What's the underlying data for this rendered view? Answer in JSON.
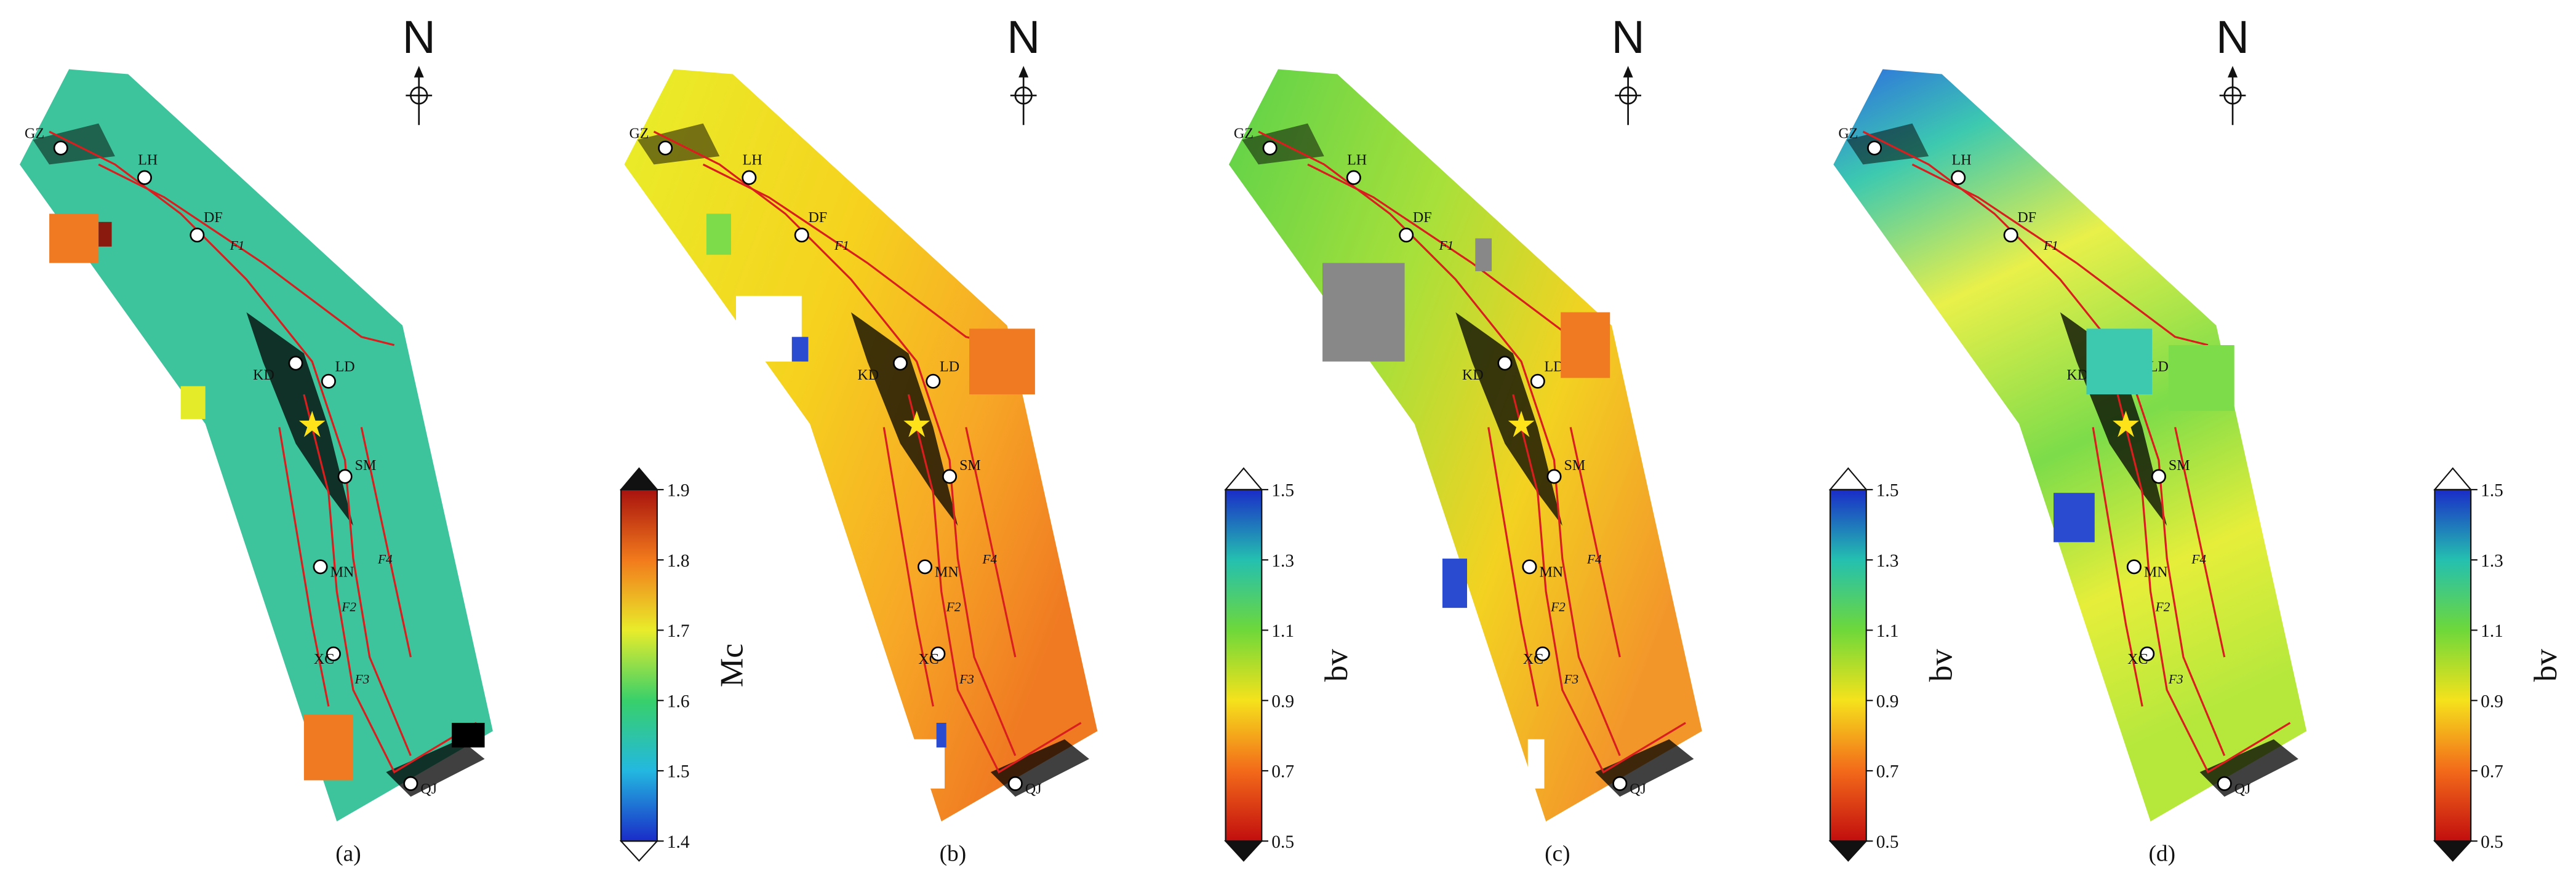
{
  "north": "N",
  "stations": [
    "GZ",
    "LH",
    "DF",
    "KD",
    "LD",
    "SM",
    "MN",
    "XC",
    "QJ"
  ],
  "faults": [
    "F1",
    "F2",
    "F3",
    "F4"
  ],
  "panels": [
    {
      "label": "(a)",
      "colorbar": {
        "title": "Mc",
        "ticks": [
          1.9,
          1.8,
          1.7,
          1.6,
          1.5,
          1.4
        ]
      }
    },
    {
      "label": "(b)",
      "colorbar": {
        "title": "bv",
        "ticks": [
          1.5,
          1.3,
          1.1,
          0.9,
          0.7,
          0.5
        ]
      }
    },
    {
      "label": "(c)",
      "colorbar": {
        "title": "bv",
        "ticks": [
          1.5,
          1.3,
          1.1,
          0.9,
          0.7,
          0.5
        ]
      }
    },
    {
      "label": "(d)",
      "colorbar": {
        "title": "bv",
        "ticks": [
          1.5,
          1.3,
          1.1,
          0.9,
          0.7,
          0.5
        ]
      }
    }
  ]
}
